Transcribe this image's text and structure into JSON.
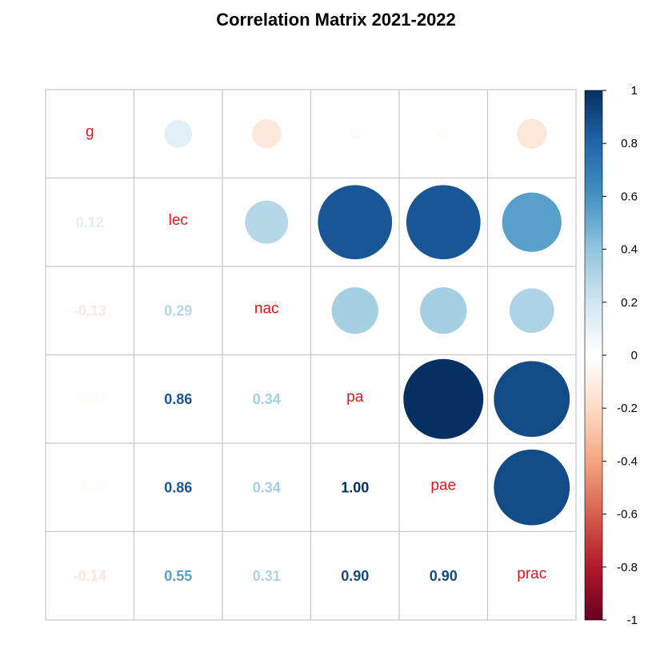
{
  "chart_data": {
    "type": "heatmap",
    "title": "Correlation Matrix 2021-2022",
    "variables": [
      "g",
      "lec",
      "nac",
      "pa",
      "pae",
      "prac"
    ],
    "matrix": [
      [
        1.0,
        0.12,
        -0.13,
        -0.02,
        -0.02,
        -0.14
      ],
      [
        0.12,
        1.0,
        0.29,
        0.86,
        0.86,
        0.55
      ],
      [
        -0.13,
        0.29,
        1.0,
        0.34,
        0.34,
        0.31
      ],
      [
        -0.02,
        0.86,
        0.34,
        1.0,
        1.0,
        0.9
      ],
      [
        -0.02,
        0.86,
        0.34,
        1.0,
        1.0,
        0.9
      ],
      [
        -0.14,
        0.55,
        0.31,
        0.9,
        0.9,
        1.0
      ]
    ],
    "lower_labels": [
      [
        null,
        null,
        null,
        null,
        null,
        null
      ],
      [
        "0.12",
        null,
        null,
        null,
        null,
        null
      ],
      [
        "-0.13",
        "0.29",
        null,
        null,
        null,
        null
      ],
      [
        "-0.02",
        "0.86",
        "0.34",
        null,
        null,
        null
      ],
      [
        "-0.02",
        "0.86",
        "0.34",
        "1.00",
        null,
        null
      ],
      [
        "-0.14",
        "0.55",
        "0.31",
        "0.90",
        "0.90",
        null
      ]
    ],
    "upper": "circle",
    "lower": "number",
    "colorbar": {
      "range": [
        -1,
        1
      ],
      "ticks": [
        "1",
        "0.8",
        "0.6",
        "0.4",
        "0.2",
        "0",
        "-0.2",
        "-0.4",
        "-0.6",
        "-0.8",
        "-1"
      ]
    },
    "colors": {
      "label": "#e8141b",
      "grid": "#c8c8c8",
      "palette": [
        "#67001f",
        "#b2182b",
        "#d6604d",
        "#f4a582",
        "#fddbc7",
        "#ffffff",
        "#d1e5f0",
        "#92c5de",
        "#4393c3",
        "#2166ac",
        "#053061"
      ]
    }
  }
}
